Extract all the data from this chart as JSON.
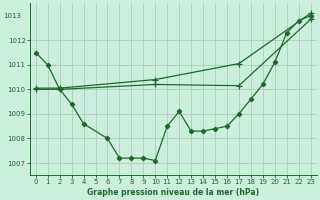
{
  "bg_color": "#cceedd",
  "grid_color": "#aaccbb",
  "line_color": "#1a6b2a",
  "ylim": [
    1006.5,
    1013.5
  ],
  "xlim": [
    -0.5,
    23.5
  ],
  "yticks": [
    1007,
    1008,
    1009,
    1010,
    1011,
    1012
  ],
  "xticks": [
    0,
    1,
    2,
    3,
    4,
    5,
    6,
    7,
    8,
    9,
    10,
    11,
    12,
    13,
    14,
    15,
    16,
    17,
    18,
    19,
    20,
    21,
    22,
    23
  ],
  "xlabel": "Graphe pression niveau de la mer (hPa)",
  "line_detail_x": [
    0,
    1,
    2,
    3,
    4,
    6,
    7,
    8,
    9,
    10,
    11,
    12,
    13,
    14,
    15,
    16,
    17,
    18,
    19,
    20,
    21,
    22,
    23
  ],
  "line_detail_y": [
    1011.5,
    1011.0,
    1010.0,
    1009.4,
    1008.6,
    1008.0,
    1007.2,
    1007.2,
    1007.2,
    1007.1,
    1008.5,
    1009.1,
    1008.3,
    1008.3,
    1008.4,
    1008.5,
    1009.0,
    1009.6,
    1010.2,
    1011.1,
    1012.3,
    1012.8,
    1013.0
  ],
  "line1_x": [
    0,
    2,
    10,
    17,
    23
  ],
  "line1_y": [
    1010.0,
    1010.0,
    1010.2,
    1010.15,
    1012.85
  ],
  "line2_x": [
    0,
    2,
    10,
    17,
    23
  ],
  "line2_y": [
    1010.05,
    1010.05,
    1010.4,
    1011.05,
    1013.1
  ],
  "ytop_label": "1013",
  "ytop_y": 1013.0
}
